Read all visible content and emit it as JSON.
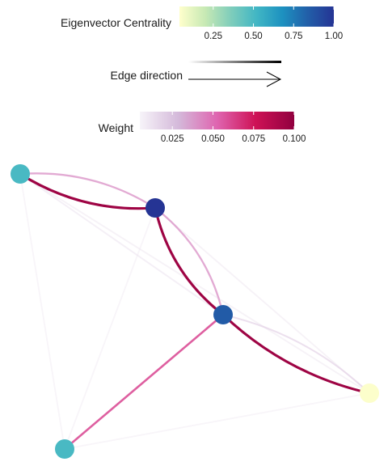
{
  "legends": {
    "centrality": {
      "title": "Eigenvector Centrality",
      "ticks": [
        {
          "value": 0.25,
          "label": "0.25"
        },
        {
          "value": 0.5,
          "label": "0.50"
        },
        {
          "value": 0.75,
          "label": "0.75"
        },
        {
          "value": 1.0,
          "label": "1.00"
        }
      ],
      "range": [
        0.04,
        1.0
      ],
      "colors": [
        "#ffffcc",
        "#c7e9b4",
        "#7fcdbb",
        "#41b6c4",
        "#1d91c0",
        "#225ea8",
        "#253494"
      ]
    },
    "edge_direction": {
      "title": "Edge direction"
    },
    "weight": {
      "title": "Weight",
      "ticks": [
        {
          "value": 0.025,
          "label": "0.025"
        },
        {
          "value": 0.05,
          "label": "0.050"
        },
        {
          "value": 0.075,
          "label": "0.075"
        },
        {
          "value": 0.1,
          "label": "0.100"
        }
      ],
      "range": [
        0.005,
        0.1
      ],
      "colors": [
        "#f7f4f9",
        "#d4b9da",
        "#df65b0",
        "#ce1256",
        "#91003f"
      ]
    }
  },
  "network": {
    "nodes": [
      {
        "id": "n1",
        "centrality": 0.5
      },
      {
        "id": "n2",
        "centrality": 1.0
      },
      {
        "id": "n3",
        "centrality": 0.85
      },
      {
        "id": "n4",
        "centrality": 0.05
      },
      {
        "id": "n5",
        "centrality": 0.5
      }
    ],
    "edges": [
      {
        "source": "n1",
        "target": "n2",
        "weight": 0.095
      },
      {
        "source": "n2",
        "target": "n1",
        "weight": 0.04
      },
      {
        "source": "n2",
        "target": "n3",
        "weight": 0.095
      },
      {
        "source": "n3",
        "target": "n2",
        "weight": 0.04
      },
      {
        "source": "n3",
        "target": "n4",
        "weight": 0.095
      },
      {
        "source": "n4",
        "target": "n3",
        "weight": 0.02
      },
      {
        "source": "n5",
        "target": "n3",
        "weight": 0.06
      },
      {
        "source": "n1",
        "target": "n3",
        "weight": 0.012
      },
      {
        "source": "n2",
        "target": "n4",
        "weight": 0.01
      },
      {
        "source": "n1",
        "target": "n4",
        "weight": 0.01
      },
      {
        "source": "n1",
        "target": "n5",
        "weight": 0.008
      },
      {
        "source": "n5",
        "target": "n4",
        "weight": 0.008
      },
      {
        "source": "n5",
        "target": "n2",
        "weight": 0.008
      }
    ]
  }
}
